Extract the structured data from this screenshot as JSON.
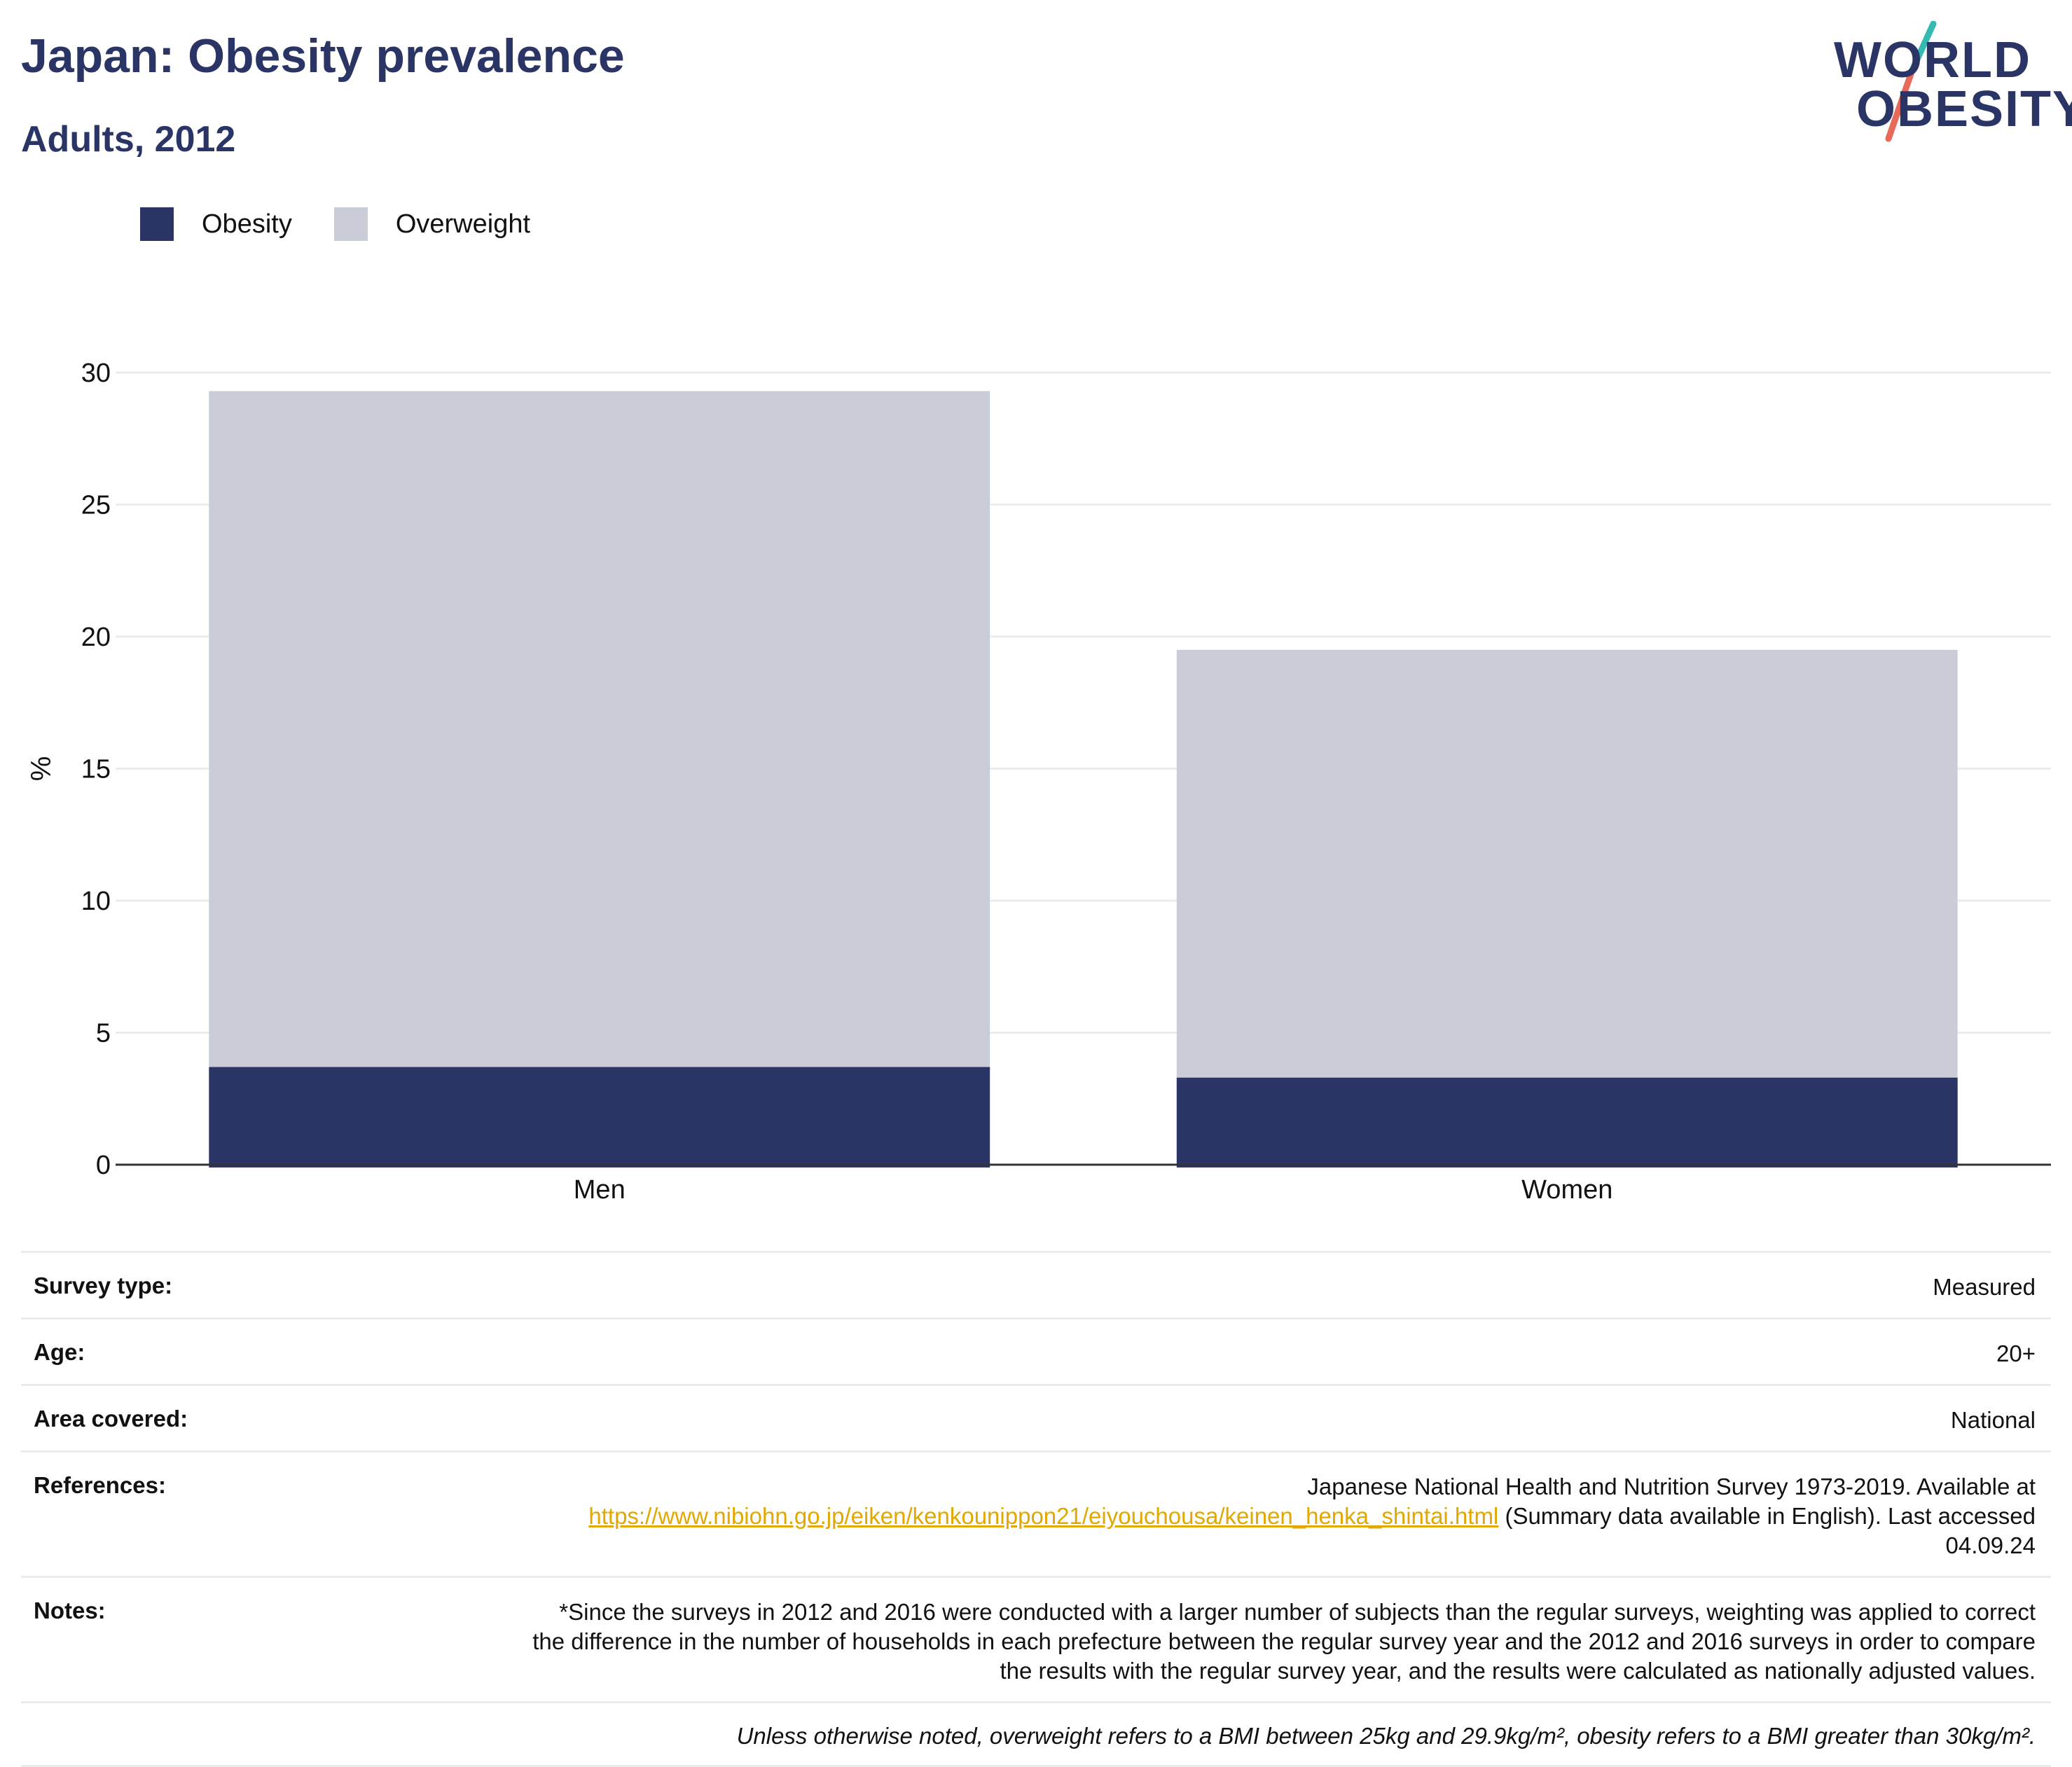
{
  "header": {
    "title": "Japan: Obesity prevalence",
    "subtitle": "Adults, 2012"
  },
  "logo": {
    "line1": "WORLD",
    "line2": "OBESITY",
    "accent_teal": "#35b9b3",
    "accent_coral": "#e8685a"
  },
  "legend": [
    {
      "label": "Obesity",
      "color": "#2a3566"
    },
    {
      "label": "Overweight",
      "color": "#cacdd8"
    }
  ],
  "chart_data": {
    "type": "bar",
    "stacked": true,
    "categories": [
      "Men",
      "Women"
    ],
    "series": [
      {
        "name": "Obesity",
        "color": "#2a3566",
        "values": [
          3.7,
          3.3
        ]
      },
      {
        "name": "Overweight",
        "color": "#cacdd8",
        "values": [
          25.6,
          16.2
        ]
      }
    ],
    "totals": [
      29.3,
      19.5
    ],
    "ylabel": "%",
    "ylim": [
      0,
      30
    ],
    "yticks": [
      0,
      5,
      10,
      15,
      20,
      25,
      30
    ],
    "grid": true,
    "legend_position": "top-left"
  },
  "meta": {
    "survey_type_label": "Survey type:",
    "survey_type_value": "Measured",
    "age_label": "Age:",
    "age_value": "20+",
    "area_label": "Area covered:",
    "area_value": "National",
    "references_label": "References:",
    "references_text_before": "Japanese National Health and Nutrition Survey 1973-2019. Available at",
    "references_link": "https://www.nibiohn.go.jp/eiken/kenkounippon21/eiyouchousa/keinen_henka_shintai.html",
    "references_text_after": "(Summary data available in English). Last accessed 04.09.24",
    "notes_label": "Notes:",
    "notes_value": "*Since the surveys in 2012 and 2016 were conducted with a larger number of subjects than the regular surveys, weighting was applied to correct the difference in the number of households in each prefecture between the regular survey year and the 2012 and 2016 surveys in order to compare the results with the regular survey year, and the results were calculated as nationally adjusted values.",
    "footnote": "Unless otherwise noted, overweight refers to a BMI between 25kg and 29.9kg/m², obesity refers to a BMI greater than 30kg/m²."
  }
}
